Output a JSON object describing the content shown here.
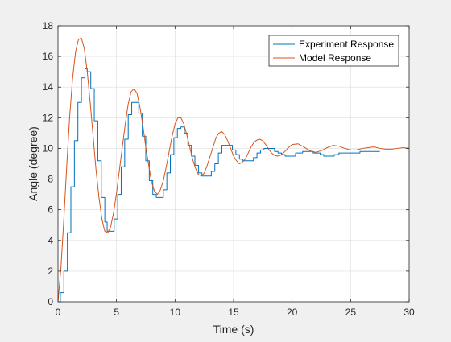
{
  "chart_data": {
    "type": "line",
    "title": "",
    "xlabel": "Time (s)",
    "ylabel": "Angle (degree)",
    "xlim": [
      0,
      30
    ],
    "ylim": [
      0,
      18
    ],
    "xticks": [
      0,
      5,
      10,
      15,
      20,
      25,
      30
    ],
    "yticks": [
      0,
      2,
      4,
      6,
      8,
      10,
      12,
      14,
      16,
      18
    ],
    "grid": true,
    "legend_position": "top-right",
    "series": [
      {
        "name": "Experiment Response",
        "color": "#0072BD",
        "step": true,
        "points": [
          [
            0,
            0
          ],
          [
            0.2,
            0.6
          ],
          [
            0.5,
            2.0
          ],
          [
            0.8,
            4.5
          ],
          [
            1.1,
            7.5
          ],
          [
            1.4,
            10.5
          ],
          [
            1.7,
            13.0
          ],
          [
            2.0,
            14.6
          ],
          [
            2.3,
            15.2
          ],
          [
            2.5,
            15.0
          ],
          [
            2.8,
            13.9
          ],
          [
            3.1,
            11.8
          ],
          [
            3.4,
            9.2
          ],
          [
            3.7,
            6.8
          ],
          [
            4.0,
            5.2
          ],
          [
            4.2,
            4.6
          ],
          [
            4.5,
            4.6
          ],
          [
            4.8,
            5.4
          ],
          [
            5.1,
            7.0
          ],
          [
            5.4,
            8.8
          ],
          [
            5.7,
            10.6
          ],
          [
            6.0,
            12.2
          ],
          [
            6.3,
            13.0
          ],
          [
            6.6,
            13.0
          ],
          [
            6.9,
            12.3
          ],
          [
            7.2,
            10.8
          ],
          [
            7.5,
            9.2
          ],
          [
            7.8,
            7.9
          ],
          [
            8.1,
            7.0
          ],
          [
            8.4,
            6.8
          ],
          [
            8.7,
            6.8
          ],
          [
            9.0,
            7.3
          ],
          [
            9.3,
            8.4
          ],
          [
            9.6,
            9.6
          ],
          [
            9.9,
            10.7
          ],
          [
            10.2,
            11.3
          ],
          [
            10.5,
            11.4
          ],
          [
            10.8,
            11.0
          ],
          [
            11.1,
            10.2
          ],
          [
            11.4,
            9.5
          ],
          [
            11.7,
            8.9
          ],
          [
            12.0,
            8.4
          ],
          [
            12.3,
            8.2
          ],
          [
            12.8,
            8.2
          ],
          [
            13.1,
            8.5
          ],
          [
            13.4,
            9.0
          ],
          [
            13.7,
            9.7
          ],
          [
            14.0,
            10.2
          ],
          [
            14.6,
            10.2
          ],
          [
            14.9,
            9.9
          ],
          [
            15.2,
            9.6
          ],
          [
            15.5,
            9.3
          ],
          [
            15.8,
            9.2
          ],
          [
            16.4,
            9.2
          ],
          [
            16.7,
            9.4
          ],
          [
            17.0,
            9.7
          ],
          [
            17.3,
            9.9
          ],
          [
            17.6,
            10.0
          ],
          [
            18.2,
            10.0
          ],
          [
            18.5,
            9.8
          ],
          [
            18.8,
            9.7
          ],
          [
            19.1,
            9.6
          ],
          [
            19.4,
            9.5
          ],
          [
            19.7,
            9.5
          ],
          [
            20.0,
            9.5
          ],
          [
            20.3,
            9.7
          ],
          [
            20.9,
            9.8
          ],
          [
            21.5,
            9.8
          ],
          [
            21.8,
            9.7
          ],
          [
            22.4,
            9.6
          ],
          [
            22.7,
            9.5
          ],
          [
            23.3,
            9.5
          ],
          [
            23.6,
            9.6
          ],
          [
            24.0,
            9.7
          ],
          [
            24.6,
            9.7
          ],
          [
            25.2,
            9.7
          ],
          [
            25.8,
            9.8
          ],
          [
            26.4,
            9.8
          ],
          [
            27.5,
            9.8
          ]
        ]
      },
      {
        "name": "Model Response",
        "color": "#D95319",
        "step": false,
        "points": [
          [
            0,
            0
          ],
          [
            0.25,
            2.2
          ],
          [
            0.5,
            5.4
          ],
          [
            0.75,
            8.9
          ],
          [
            1.0,
            12.1
          ],
          [
            1.25,
            14.6
          ],
          [
            1.5,
            16.3
          ],
          [
            1.75,
            17.1
          ],
          [
            2.0,
            17.2
          ],
          [
            2.25,
            16.5
          ],
          [
            2.5,
            15.0
          ],
          [
            2.75,
            13.0
          ],
          [
            3.0,
            10.8
          ],
          [
            3.25,
            8.6
          ],
          [
            3.5,
            6.8
          ],
          [
            3.75,
            5.4
          ],
          [
            4.0,
            4.6
          ],
          [
            4.25,
            4.5
          ],
          [
            4.5,
            4.9
          ],
          [
            4.75,
            5.8
          ],
          [
            5.0,
            7.1
          ],
          [
            5.25,
            8.6
          ],
          [
            5.5,
            10.1
          ],
          [
            5.75,
            11.6
          ],
          [
            6.0,
            12.9
          ],
          [
            6.25,
            13.7
          ],
          [
            6.5,
            13.9
          ],
          [
            6.75,
            13.6
          ],
          [
            7.0,
            12.7
          ],
          [
            7.25,
            11.5
          ],
          [
            7.5,
            10.1
          ],
          [
            7.75,
            8.9
          ],
          [
            8.0,
            7.8
          ],
          [
            8.25,
            7.2
          ],
          [
            8.5,
            7.0
          ],
          [
            8.75,
            7.3
          ],
          [
            9.0,
            7.9
          ],
          [
            9.25,
            8.8
          ],
          [
            9.5,
            9.8
          ],
          [
            9.75,
            10.8
          ],
          [
            10.0,
            11.6
          ],
          [
            10.25,
            12.0
          ],
          [
            10.5,
            12.0
          ],
          [
            10.75,
            11.6
          ],
          [
            11.0,
            10.9
          ],
          [
            11.25,
            10.1
          ],
          [
            11.5,
            9.3
          ],
          [
            11.75,
            8.7
          ],
          [
            12.0,
            8.3
          ],
          [
            12.25,
            8.2
          ],
          [
            12.5,
            8.4
          ],
          [
            12.75,
            8.9
          ],
          [
            13.0,
            9.5
          ],
          [
            13.25,
            10.1
          ],
          [
            13.5,
            10.7
          ],
          [
            13.75,
            11.0
          ],
          [
            14.0,
            11.1
          ],
          [
            14.25,
            10.9
          ],
          [
            14.5,
            10.5
          ],
          [
            14.75,
            10.0
          ],
          [
            15.0,
            9.5
          ],
          [
            15.25,
            9.2
          ],
          [
            15.5,
            9.0
          ],
          [
            15.75,
            9.1
          ],
          [
            16.0,
            9.3
          ],
          [
            16.25,
            9.7
          ],
          [
            16.5,
            10.1
          ],
          [
            16.75,
            10.4
          ],
          [
            17.0,
            10.55
          ],
          [
            17.25,
            10.6
          ],
          [
            17.5,
            10.5
          ],
          [
            17.75,
            10.25
          ],
          [
            18.0,
            9.95
          ],
          [
            18.25,
            9.7
          ],
          [
            18.5,
            9.55
          ],
          [
            18.75,
            9.5
          ],
          [
            19.0,
            9.55
          ],
          [
            19.25,
            9.7
          ],
          [
            19.5,
            9.9
          ],
          [
            19.75,
            10.1
          ],
          [
            20.0,
            10.25
          ],
          [
            20.5,
            10.3
          ],
          [
            21.0,
            10.1
          ],
          [
            21.5,
            9.85
          ],
          [
            22.0,
            9.75
          ],
          [
            22.5,
            9.85
          ],
          [
            23.0,
            10.05
          ],
          [
            23.5,
            10.2
          ],
          [
            24.0,
            10.15
          ],
          [
            24.5,
            10.0
          ],
          [
            25.0,
            9.9
          ],
          [
            25.5,
            9.9
          ],
          [
            26.0,
            10.0
          ],
          [
            26.5,
            10.05
          ],
          [
            27.0,
            10.1
          ],
          [
            27.5,
            10.0
          ],
          [
            28.0,
            9.95
          ],
          [
            28.5,
            9.95
          ],
          [
            29.0,
            10.0
          ],
          [
            29.5,
            10.05
          ],
          [
            30.0,
            10.0
          ]
        ]
      }
    ]
  }
}
